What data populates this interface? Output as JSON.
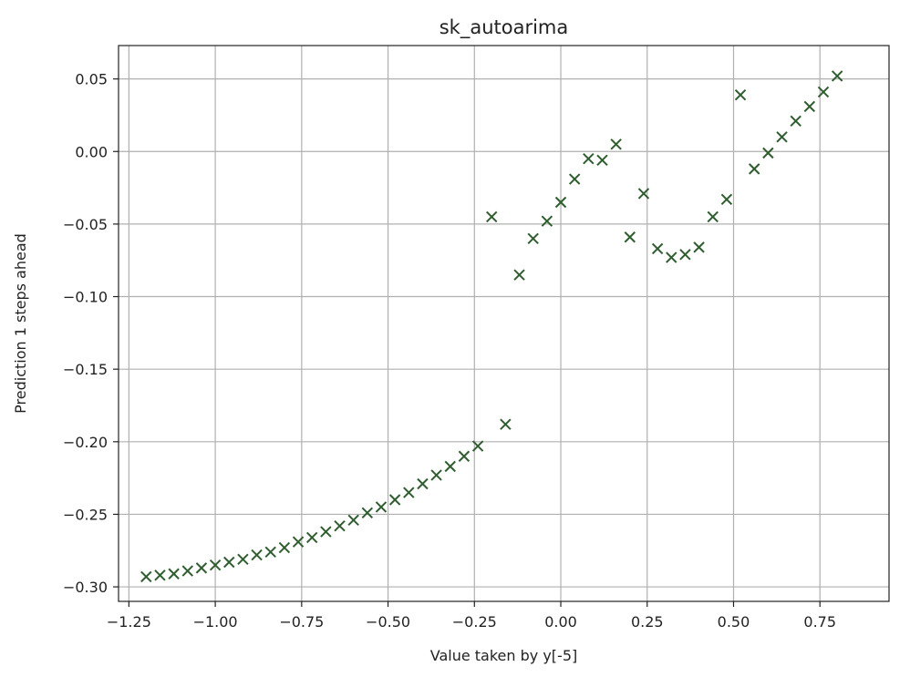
{
  "chart_data": {
    "type": "scatter",
    "title": "sk_autoarima",
    "xlabel": "Value taken by y[-5]",
    "ylabel": "Prediction 1 steps ahead",
    "xlim": [
      -1.28,
      0.95
    ],
    "ylim": [
      -0.31,
      0.073
    ],
    "xticks": [
      -1.25,
      -1.0,
      -0.75,
      -0.5,
      -0.25,
      0.0,
      0.25,
      0.5,
      0.75
    ],
    "xtick_labels": [
      "−1.25",
      "−1.00",
      "−0.75",
      "−0.50",
      "−0.25",
      "0.00",
      "0.25",
      "0.50",
      "0.75"
    ],
    "yticks": [
      -0.3,
      -0.25,
      -0.2,
      -0.15,
      -0.1,
      -0.05,
      0.0,
      0.05
    ],
    "ytick_labels": [
      "−0.30",
      "−0.25",
      "−0.20",
      "−0.15",
      "−0.10",
      "−0.05",
      "0.00",
      "0.05"
    ],
    "grid": true,
    "marker": "x",
    "marker_color": "#2f5d2f",
    "series": [
      {
        "points": [
          [
            -1.2,
            -0.293
          ],
          [
            -1.16,
            -0.292
          ],
          [
            -1.12,
            -0.291
          ],
          [
            -1.08,
            -0.289
          ],
          [
            -1.04,
            -0.287
          ],
          [
            -1.0,
            -0.285
          ],
          [
            -0.96,
            -0.283
          ],
          [
            -0.92,
            -0.281
          ],
          [
            -0.88,
            -0.278
          ],
          [
            -0.84,
            -0.276
          ],
          [
            -0.8,
            -0.273
          ],
          [
            -0.76,
            -0.269
          ],
          [
            -0.72,
            -0.266
          ],
          [
            -0.68,
            -0.262
          ],
          [
            -0.64,
            -0.258
          ],
          [
            -0.6,
            -0.254
          ],
          [
            -0.56,
            -0.249
          ],
          [
            -0.52,
            -0.245
          ],
          [
            -0.48,
            -0.24
          ],
          [
            -0.44,
            -0.235
          ],
          [
            -0.4,
            -0.229
          ],
          [
            -0.36,
            -0.223
          ],
          [
            -0.32,
            -0.217
          ],
          [
            -0.28,
            -0.21
          ],
          [
            -0.24,
            -0.203
          ],
          [
            -0.2,
            -0.045
          ],
          [
            -0.16,
            -0.188
          ],
          [
            -0.12,
            -0.085
          ],
          [
            -0.08,
            -0.06
          ],
          [
            -0.04,
            -0.048
          ],
          [
            0.0,
            -0.035
          ],
          [
            0.04,
            -0.019
          ],
          [
            0.08,
            -0.005
          ],
          [
            0.12,
            -0.006
          ],
          [
            0.16,
            0.005
          ],
          [
            0.2,
            -0.059
          ],
          [
            0.24,
            -0.029
          ],
          [
            0.28,
            -0.067
          ],
          [
            0.32,
            -0.073
          ],
          [
            0.36,
            -0.071
          ],
          [
            0.4,
            -0.066
          ],
          [
            0.44,
            -0.045
          ],
          [
            0.48,
            -0.033
          ],
          [
            0.52,
            0.039
          ],
          [
            0.56,
            -0.012
          ],
          [
            0.6,
            -0.001
          ],
          [
            0.64,
            0.01
          ],
          [
            0.68,
            0.021
          ],
          [
            0.72,
            0.031
          ],
          [
            0.76,
            0.041
          ],
          [
            0.8,
            0.052
          ]
        ]
      }
    ]
  }
}
